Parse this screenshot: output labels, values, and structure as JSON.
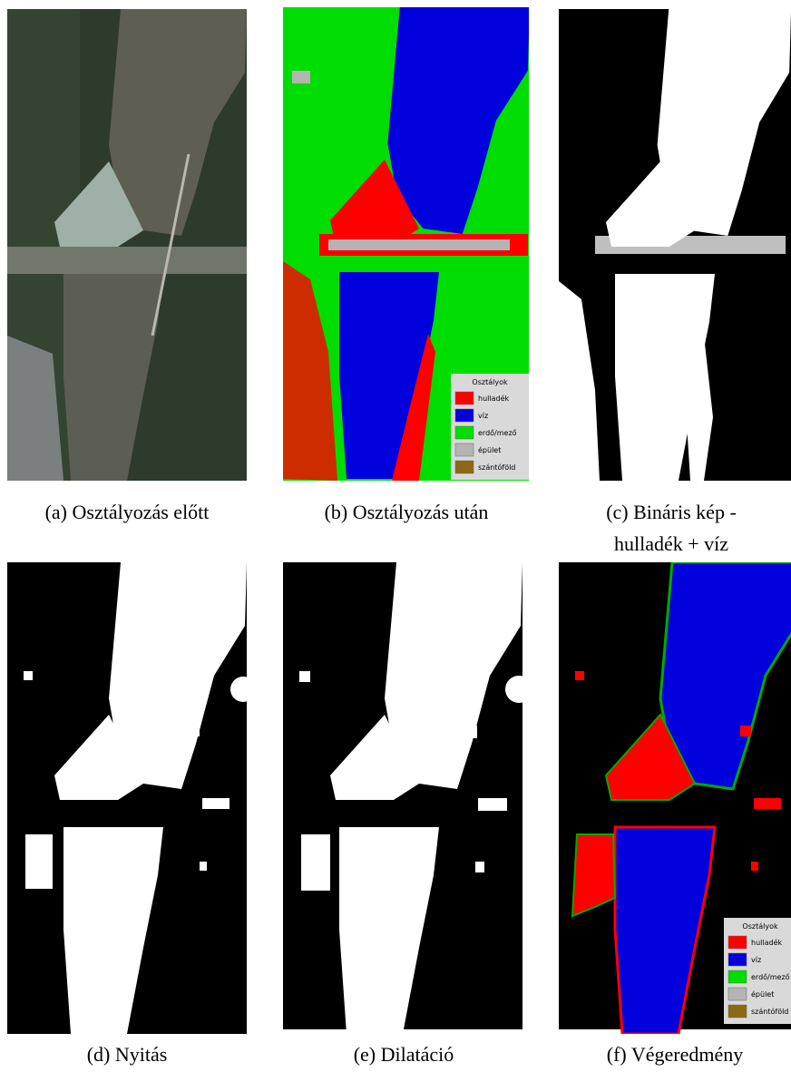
{
  "panels": [
    {
      "caption": [
        "(a) Osztályozás előtt"
      ]
    },
    {
      "caption": [
        "(b) Osztályozás után"
      ]
    },
    {
      "caption": [
        "(c) Bináris kép -",
        "hulladék + víz"
      ]
    },
    {
      "caption": [
        "(d) Nyitás"
      ]
    },
    {
      "caption": [
        "(e) Dilatáció"
      ]
    },
    {
      "caption": [
        "(f) Végeredmény"
      ]
    }
  ],
  "legend": {
    "title": "Osztályok",
    "items": [
      {
        "label": "hulladék",
        "color": "#ff0000"
      },
      {
        "label": "víz",
        "color": "#0000dd"
      },
      {
        "label": "erdő/mező",
        "color": "#00dd00"
      },
      {
        "label": "épület",
        "color": "#b4b4b4"
      },
      {
        "label": "szántóföld",
        "color": "#8b6914"
      }
    ]
  }
}
